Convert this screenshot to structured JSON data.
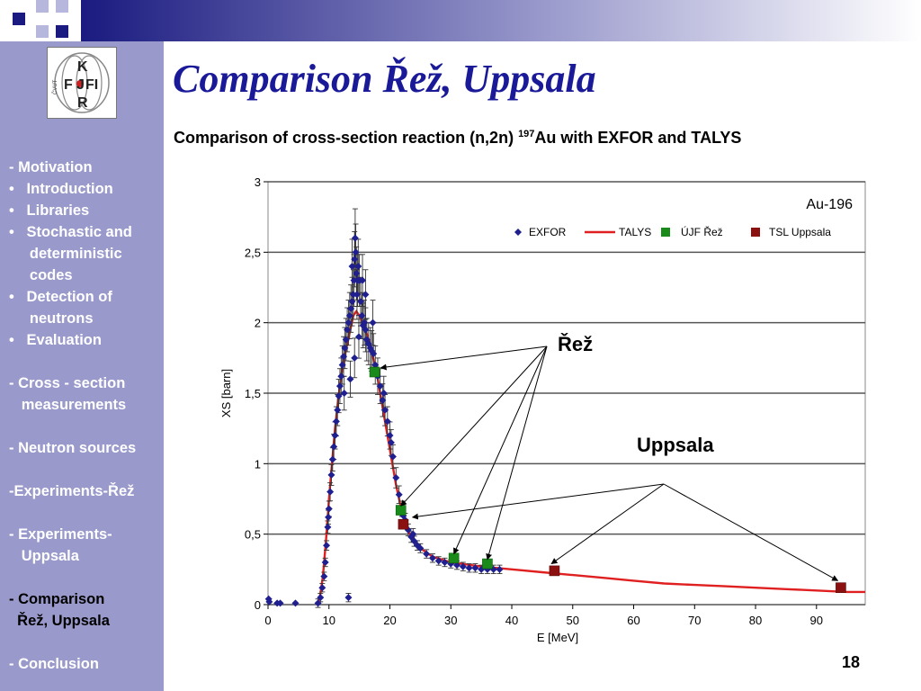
{
  "slide": {
    "title": "Comparison Řež, Uppsala",
    "subtitle_text": "Comparison of cross-section reaction (n,2n) ",
    "subtitle_sup": "197",
    "subtitle_rest": "Au with EXFOR and TALYS",
    "slide_number": "18",
    "logo": {
      "letters": [
        "K",
        "F",
        "J",
        "FI",
        "R"
      ],
      "side_text": "ČVUT"
    }
  },
  "sidebar": {
    "items": [
      {
        "label": "- Motivation",
        "active": false
      },
      {
        "label": "•   Introduction",
        "active": false
      },
      {
        "label": "•   Libraries",
        "active": false
      },
      {
        "label": "•   Stochastic and",
        "active": false
      },
      {
        "label": "     deterministic",
        "active": false
      },
      {
        "label": "     codes",
        "active": false
      },
      {
        "label": "•   Detection of",
        "active": false
      },
      {
        "label": "     neutrons",
        "active": false
      },
      {
        "label": "•   Evaluation",
        "active": false
      },
      {
        "label": "",
        "active": false
      },
      {
        "label": "- Cross - section",
        "active": false
      },
      {
        "label": "   measurements",
        "active": false
      },
      {
        "label": "",
        "active": false
      },
      {
        "label": "- Neutron sources",
        "active": false
      },
      {
        "label": "",
        "active": false
      },
      {
        "label": "-Experiments-Řež",
        "active": false
      },
      {
        "label": "",
        "active": false
      },
      {
        "label": "- Experiments-",
        "active": false
      },
      {
        "label": "   Uppsala",
        "active": false
      },
      {
        "label": "",
        "active": false
      },
      {
        "label": "- Comparison",
        "active": true
      },
      {
        "label": "  Řež, Uppsala",
        "active": true
      },
      {
        "label": "",
        "active": false
      },
      {
        "label": "- Conclusion",
        "active": false
      }
    ]
  },
  "annotations": {
    "rez_label": "Řež",
    "uppsala_label": "Uppsala"
  },
  "colors": {
    "sidebar": "#9999cc",
    "title": "#1a1a99",
    "exfor": "#1f1f8f",
    "talys": "#e02020",
    "ujf": "#1a8a1a",
    "tsl": "#8b1010"
  },
  "chart_data": {
    "type": "scatter",
    "title": "Au-196",
    "xlabel": "E [MeV]",
    "ylabel": "XS [barn]",
    "xlim": [
      0,
      98
    ],
    "ylim": [
      0,
      3
    ],
    "x_ticks": [
      0,
      10,
      20,
      30,
      40,
      50,
      60,
      70,
      80,
      90
    ],
    "y_ticks": [
      0,
      0.5,
      1,
      1.5,
      2,
      2.5,
      3
    ],
    "y_tick_labels": [
      "0",
      "0,5",
      "1",
      "1,5",
      "2",
      "2,5",
      "3"
    ],
    "grid": "horizontal",
    "legend_position": "top-right",
    "legend": [
      "EXFOR",
      "TALYS",
      "ÚJF Řež",
      "TSL Uppsala"
    ],
    "series": [
      {
        "name": "EXFOR",
        "kind": "points-with-errorbars",
        "points": [
          [
            0.1,
            0.04
          ],
          [
            0.2,
            0.02
          ],
          [
            1.5,
            0.01
          ],
          [
            2,
            0.01
          ],
          [
            4.5,
            0.01
          ],
          [
            13.2,
            0.05
          ],
          [
            8.2,
            0.01
          ],
          [
            8.6,
            0.05
          ],
          [
            8.9,
            0.12
          ],
          [
            9.2,
            0.2
          ],
          [
            9.4,
            0.3
          ],
          [
            9.6,
            0.42
          ],
          [
            9.8,
            0.55
          ],
          [
            9.9,
            0.62
          ],
          [
            10,
            0.68
          ],
          [
            10.2,
            0.8
          ],
          [
            10.4,
            0.92
          ],
          [
            10.6,
            1.03
          ],
          [
            10.8,
            1.12
          ],
          [
            11,
            1.2
          ],
          [
            11.2,
            1.3
          ],
          [
            11.4,
            1.38
          ],
          [
            11.6,
            1.48
          ],
          [
            11.8,
            1.55
          ],
          [
            12,
            1.62
          ],
          [
            12.2,
            1.7
          ],
          [
            12.4,
            1.76
          ],
          [
            12.6,
            1.82
          ],
          [
            12.8,
            1.88
          ],
          [
            13,
            1.95
          ],
          [
            13.2,
            2.0
          ],
          [
            13.4,
            2.05
          ],
          [
            13.6,
            2.1
          ],
          [
            13.8,
            2.15
          ],
          [
            14,
            2.2
          ],
          [
            14.1,
            2.3
          ],
          [
            14.2,
            2.45
          ],
          [
            14.3,
            2.6
          ],
          [
            14.4,
            2.5
          ],
          [
            14.5,
            2.35
          ],
          [
            14.6,
            2.2
          ],
          [
            14.7,
            2.3
          ],
          [
            14.8,
            2.4
          ],
          [
            15,
            2.3
          ],
          [
            15.2,
            2.15
          ],
          [
            15.4,
            2.05
          ],
          [
            15.6,
            1.98
          ],
          [
            15.8,
            2.0
          ],
          [
            16,
            1.95
          ],
          [
            16.2,
            1.88
          ],
          [
            16.5,
            1.85
          ],
          [
            16.8,
            1.82
          ],
          [
            17,
            1.8
          ],
          [
            17.3,
            1.78
          ],
          [
            17.6,
            1.7
          ],
          [
            18,
            1.62
          ],
          [
            18.4,
            1.55
          ],
          [
            18.8,
            1.45
          ],
          [
            19.2,
            1.38
          ],
          [
            19.6,
            1.3
          ],
          [
            20,
            1.2
          ],
          [
            20.5,
            1.05
          ],
          [
            21,
            0.9
          ],
          [
            21.5,
            0.78
          ],
          [
            22,
            0.68
          ],
          [
            22.5,
            0.6
          ],
          [
            23,
            0.53
          ],
          [
            23.5,
            0.48
          ],
          [
            24,
            0.45
          ],
          [
            24.5,
            0.42
          ],
          [
            25,
            0.4
          ],
          [
            26,
            0.36
          ],
          [
            27,
            0.33
          ],
          [
            28,
            0.31
          ],
          [
            29,
            0.3
          ],
          [
            30,
            0.29
          ],
          [
            31,
            0.28
          ],
          [
            32,
            0.27
          ],
          [
            33,
            0.26
          ],
          [
            34,
            0.26
          ],
          [
            35,
            0.25
          ],
          [
            36,
            0.25
          ],
          [
            37,
            0.25
          ],
          [
            38,
            0.25
          ],
          [
            13.5,
            1.6
          ],
          [
            14.2,
            1.75
          ],
          [
            15.5,
            2.3
          ],
          [
            12.5,
            1.5
          ],
          [
            16,
            2.2
          ],
          [
            17.2,
            2.0
          ],
          [
            13.8,
            2.4
          ],
          [
            14.9,
            1.9
          ],
          [
            19,
            1.5
          ],
          [
            20.2,
            1.15
          ],
          [
            22.2,
            0.63
          ],
          [
            23.8,
            0.5
          ]
        ]
      },
      {
        "name": "TALYS",
        "kind": "line",
        "points": [
          [
            8.1,
            0.0
          ],
          [
            8.5,
            0.05
          ],
          [
            9,
            0.2
          ],
          [
            9.5,
            0.45
          ],
          [
            10,
            0.75
          ],
          [
            10.5,
            1.0
          ],
          [
            11,
            1.25
          ],
          [
            11.5,
            1.45
          ],
          [
            12,
            1.62
          ],
          [
            12.5,
            1.75
          ],
          [
            13,
            1.85
          ],
          [
            13.5,
            1.95
          ],
          [
            14,
            2.05
          ],
          [
            14.5,
            2.08
          ],
          [
            15,
            2.05
          ],
          [
            15.5,
            2.0
          ],
          [
            16,
            1.95
          ],
          [
            16.5,
            1.88
          ],
          [
            17,
            1.8
          ],
          [
            18,
            1.6
          ],
          [
            19,
            1.35
          ],
          [
            20,
            1.1
          ],
          [
            21,
            0.85
          ],
          [
            22,
            0.65
          ],
          [
            23,
            0.52
          ],
          [
            24,
            0.45
          ],
          [
            25,
            0.4
          ],
          [
            27,
            0.34
          ],
          [
            30,
            0.3
          ],
          [
            35,
            0.27
          ],
          [
            40,
            0.25
          ],
          [
            45,
            0.23
          ],
          [
            50,
            0.21
          ],
          [
            55,
            0.19
          ],
          [
            60,
            0.17
          ],
          [
            65,
            0.15
          ],
          [
            70,
            0.14
          ],
          [
            75,
            0.13
          ],
          [
            80,
            0.12
          ],
          [
            85,
            0.11
          ],
          [
            90,
            0.1
          ],
          [
            95,
            0.09
          ],
          [
            98,
            0.09
          ]
        ]
      },
      {
        "name": "ÚJF Řež",
        "kind": "square",
        "points": [
          [
            17.5,
            1.65
          ],
          [
            21.8,
            0.67
          ],
          [
            30.5,
            0.33
          ],
          [
            36,
            0.29
          ]
        ]
      },
      {
        "name": "TSL Uppsala",
        "kind": "square",
        "points": [
          [
            22.2,
            0.57
          ],
          [
            47,
            0.24
          ],
          [
            94,
            0.12
          ]
        ]
      }
    ]
  }
}
